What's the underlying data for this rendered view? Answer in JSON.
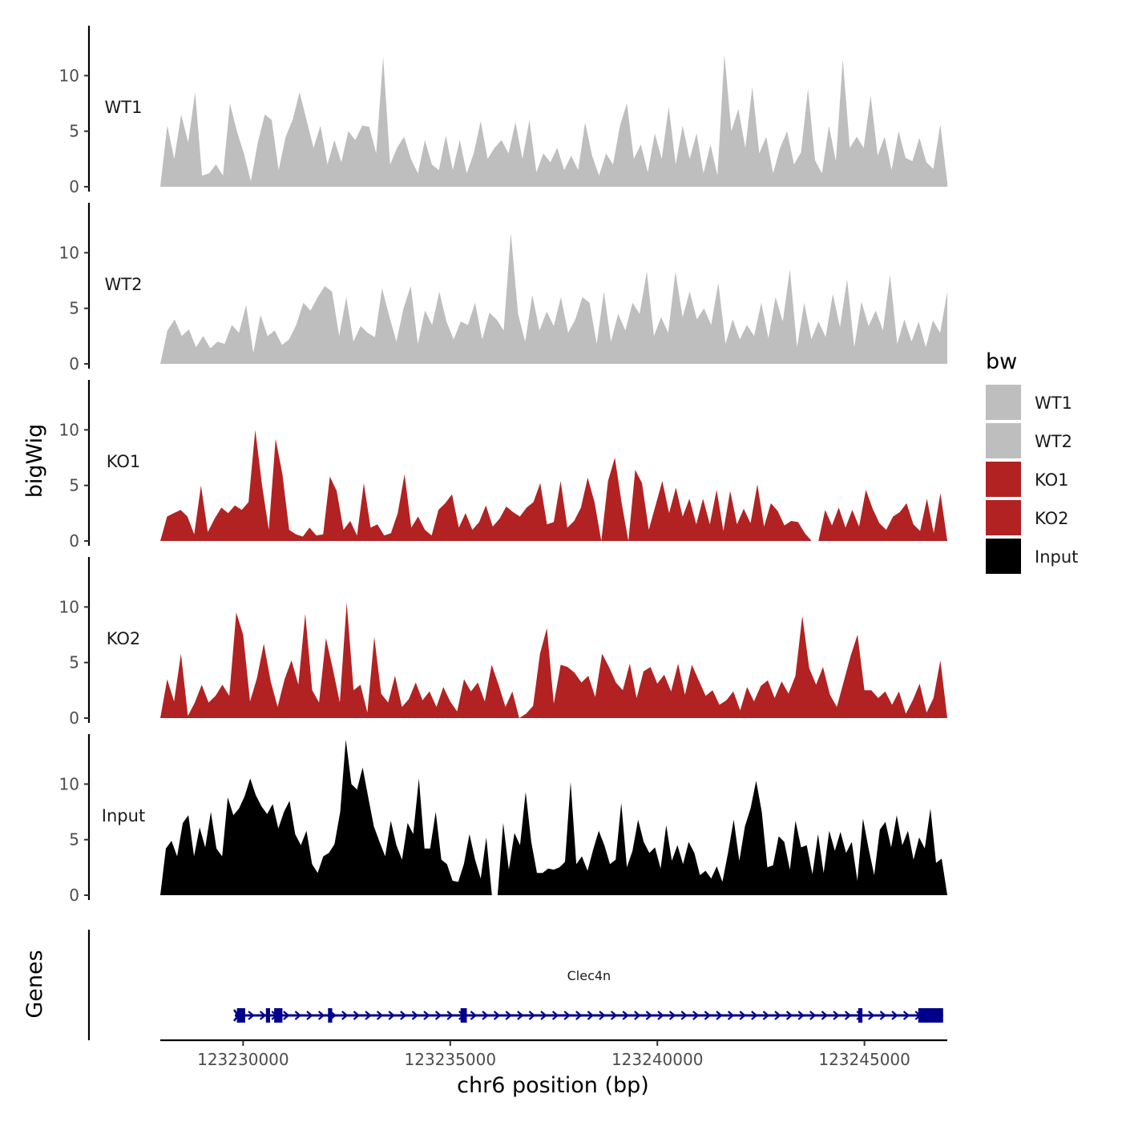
{
  "chart_data": {
    "type": "area",
    "title": "",
    "xlabel": "chr6 position (bp)",
    "ylabel": "bigWig",
    "xlim": [
      123228000,
      123247000
    ],
    "x_ticks": [
      123230000,
      123235000,
      123240000,
      123245000
    ],
    "x_tick_labels": [
      "123230000",
      "123235000",
      "123240000",
      "123245000"
    ],
    "ylim": [
      0,
      14.5
    ],
    "y_ticks": [
      0,
      5,
      10
    ],
    "y_tick_labels": [
      "0",
      "5",
      "10"
    ],
    "legend": {
      "title": "bw",
      "position": "right",
      "entries": [
        {
          "label": "WT1",
          "color": "#bebebe"
        },
        {
          "label": "WT2",
          "color": "#bebebe"
        },
        {
          "label": "KO1",
          "color": "#b22222"
        },
        {
          "label": "KO2",
          "color": "#b22222"
        },
        {
          "label": "Input",
          "color": "#000000"
        }
      ]
    },
    "series": [
      {
        "name": "WT1",
        "color": "#bebebe",
        "x_start": 123228000,
        "x_end": 123247000,
        "values": [
          0,
          5.5,
          2.5,
          6.5,
          4,
          8.5,
          1,
          1.2,
          2,
          1,
          7.5,
          5,
          3,
          0.5,
          4,
          6.5,
          6,
          1.5,
          4.5,
          6,
          8.5,
          6,
          3.5,
          5.5,
          2,
          4.2,
          2.2,
          5,
          4.2,
          5.5,
          5.4,
          3,
          11.7,
          2,
          3.5,
          4.5,
          2.5,
          1.2,
          4.2,
          2,
          1.5,
          4.6,
          1.5,
          4.2,
          1.2,
          3,
          5.9,
          2.5,
          3.5,
          4.2,
          3,
          5.8,
          2.5,
          6,
          1.3,
          3,
          2.2,
          3.5,
          1.5,
          2.8,
          1.5,
          5.8,
          2.8,
          1,
          3,
          2,
          5.5,
          7.5,
          2.5,
          3.8,
          1.3,
          4.8,
          2.5,
          7.2,
          2,
          5.5,
          2.5,
          4.8,
          1.2,
          3.8,
          1,
          11.9,
          5,
          7,
          3.5,
          9,
          3,
          4.5,
          1.2,
          3.5,
          5,
          2,
          3.1,
          8.8,
          2.4,
          1.2,
          5.5,
          2.3,
          11.5,
          3.5,
          4.5,
          3.5,
          8.2,
          2.8,
          4.5,
          1.5,
          5,
          2.6,
          2.3,
          4.4,
          2.2,
          1.6,
          5.6,
          0.4
        ]
      },
      {
        "name": "WT2",
        "color": "#bebebe",
        "x_start": 123228000,
        "x_end": 123247000,
        "values": [
          0,
          3,
          4,
          2.5,
          3.1,
          1.5,
          2.5,
          1.4,
          2,
          1.8,
          3.5,
          2.8,
          5.3,
          1,
          4.4,
          2.5,
          3,
          1.7,
          2.2,
          3.5,
          5.5,
          4.8,
          6,
          7,
          6.5,
          2.5,
          6,
          2,
          3.4,
          2.8,
          2.4,
          6.8,
          4.3,
          2,
          5,
          7,
          1.8,
          4.8,
          3.5,
          6.5,
          3.8,
          2.2,
          3.8,
          3.5,
          5.5,
          2.2,
          4.6,
          4,
          3,
          11.8,
          4.5,
          2,
          6.2,
          3,
          4.7,
          3.4,
          6,
          2.8,
          4,
          6,
          5.5,
          1.8,
          6.5,
          2,
          4.5,
          3,
          5.5,
          4.5,
          8.3,
          2.5,
          4.2,
          2.8,
          8.3,
          4.2,
          6.5,
          4,
          5,
          3.5,
          7.3,
          1.8,
          4,
          2.2,
          3.5,
          2.5,
          5.5,
          2.3,
          6,
          3.8,
          8.5,
          1.5,
          5.5,
          2.2,
          3.8,
          2.4,
          6.3,
          3.3,
          7.6,
          1.5,
          5.6,
          3.4,
          4.8,
          3,
          8,
          1.8,
          4,
          2,
          3.8,
          1.5,
          3.9,
          2.8,
          6.5
        ]
      },
      {
        "name": "KO1",
        "color": "#b22222",
        "x_start": 123228000,
        "x_end": 123247000,
        "values": [
          0,
          2.2,
          2.5,
          2.8,
          2.2,
          0.6,
          5,
          0.8,
          2,
          3,
          2.5,
          3.2,
          2.8,
          3.5,
          10,
          5,
          1,
          9.2,
          6,
          1,
          0.6,
          0.4,
          1.2,
          0.5,
          0.6,
          5.8,
          4.5,
          1,
          1.8,
          0.5,
          5.2,
          1.2,
          1.5,
          0.5,
          0.7,
          2.5,
          6,
          1.2,
          2.2,
          1,
          0.5,
          2.8,
          3.4,
          4.2,
          1.2,
          2.5,
          1,
          1.7,
          3.2,
          1.3,
          2,
          3.1,
          2.6,
          2.2,
          3,
          3.5,
          5.2,
          1.5,
          1.7,
          5.4,
          1.2,
          1.8,
          3,
          5.7,
          3.5,
          0,
          5.4,
          7.5,
          3.4,
          0,
          6.4,
          5.2,
          1,
          3.2,
          5.4,
          2.5,
          4.8,
          2.2,
          3.8,
          1.5,
          3.8,
          1.5,
          4.6,
          0.9,
          4.5,
          1.5,
          2.9,
          1.6,
          5.1,
          1.3,
          3.4,
          2.7,
          1.4,
          1.8,
          1.7,
          0.7,
          0,
          0,
          2.8,
          1.4,
          3,
          1.2,
          2.8,
          1.3,
          4.6,
          2.9,
          1.6,
          1,
          2.2,
          2.6,
          3.4,
          1.5,
          0.9,
          3.8,
          0.7,
          4.3,
          0
        ]
      },
      {
        "name": "KO2",
        "color": "#b22222",
        "x_start": 123228000,
        "x_end": 123247000,
        "values": [
          0,
          3.5,
          1.5,
          5.8,
          0.2,
          1.4,
          3,
          1.4,
          2,
          3,
          2,
          9.5,
          7.5,
          1.5,
          3.6,
          6.7,
          3.3,
          1,
          3.5,
          5.2,
          3,
          9.4,
          2.5,
          1.4,
          7.2,
          4.4,
          1.4,
          10.4,
          2.5,
          3,
          0.5,
          7.3,
          2.2,
          1.4,
          3.8,
          1,
          1.7,
          3.2,
          1.6,
          2.4,
          1,
          2.8,
          1.5,
          0.6,
          3.5,
          2.4,
          3.2,
          1.5,
          4.8,
          3,
          1,
          2.4,
          0,
          0.4,
          1.1,
          5.8,
          8.1,
          1.3,
          4.8,
          4.6,
          4.1,
          3.2,
          3.8,
          1.9,
          5.8,
          4.6,
          3.2,
          2.5,
          4.9,
          1.8,
          4.2,
          4.6,
          3.1,
          3.9,
          2.4,
          4.9,
          2.1,
          4.8,
          3.4,
          2,
          2.5,
          1.2,
          1.6,
          2.4,
          0.7,
          2.8,
          1.5,
          2.9,
          3.4,
          1.8,
          3.3,
          2.2,
          3.8,
          9.2,
          4.5,
          3,
          4.6,
          2.1,
          1,
          3.3,
          5.6,
          7.5,
          2.5,
          2.5,
          1.8,
          2.4,
          1.2,
          2.4,
          0.4,
          1.6,
          3.1,
          0.5,
          1.8,
          5.2,
          0
        ]
      },
      {
        "name": "Input",
        "color": "#000000",
        "x_start": 123228000,
        "x_end": 123247000,
        "values": [
          0,
          4.2,
          4.9,
          3.5,
          6.5,
          7.2,
          3.5,
          6.1,
          4.3,
          7.5,
          4.2,
          3.5,
          8.8,
          7.2,
          7.8,
          8.9,
          10.5,
          9,
          8,
          7.3,
          8.2,
          6,
          7.5,
          8.5,
          5.5,
          4.5,
          5.8,
          2.8,
          2,
          3.5,
          3.8,
          4.6,
          7.5,
          14,
          10,
          9.5,
          11.5,
          8.8,
          6.2,
          4.8,
          3.5,
          6.7,
          4.5,
          3.2,
          6.5,
          5.5,
          10.5,
          4.2,
          4.2,
          7.5,
          3.2,
          2.8,
          1.3,
          1.2,
          2.8,
          5.5,
          3.2,
          1.5,
          5.2,
          0,
          0,
          6.5,
          2.3,
          5.6,
          4.5,
          9.3,
          4.8,
          2,
          2,
          2.4,
          2.3,
          2.5,
          3,
          10.2,
          2.8,
          3.5,
          2.2,
          4.1,
          5.8,
          4.5,
          2.8,
          3.2,
          8.3,
          2.5,
          4,
          6.8,
          4.8,
          3.8,
          4.3,
          2.4,
          6.3,
          3.1,
          4.5,
          2.8,
          4.8,
          3.8,
          1.8,
          2.2,
          1.5,
          2.6,
          1.2,
          3.8,
          6.8,
          3.1,
          6.2,
          7.8,
          10.3,
          7.5,
          2.5,
          2.7,
          5.3,
          4.8,
          2.3,
          6.7,
          4.3,
          4.5,
          1.9,
          5.5,
          2,
          5.8,
          4,
          5.7,
          3.8,
          4.8,
          1.3,
          6.9,
          4.2,
          1.8,
          5.9,
          6.6,
          4.3,
          7.2,
          4.5,
          5.8,
          3.2,
          5.2,
          4.2,
          7.8,
          2.9,
          3.3,
          0
        ]
      }
    ],
    "gene_track": {
      "label": "Genes",
      "gene_name": "Clec4n",
      "strand": "+",
      "color": "#00008b",
      "start": 123229800,
      "end": 123246900,
      "exons": [
        [
          123229850,
          123230050
        ],
        [
          123230550,
          123230650
        ],
        [
          123230750,
          123230950
        ],
        [
          123232050,
          123232150
        ],
        [
          123235250,
          123235400
        ],
        [
          123244850,
          123244950
        ],
        [
          123246300,
          123246900
        ]
      ]
    }
  }
}
